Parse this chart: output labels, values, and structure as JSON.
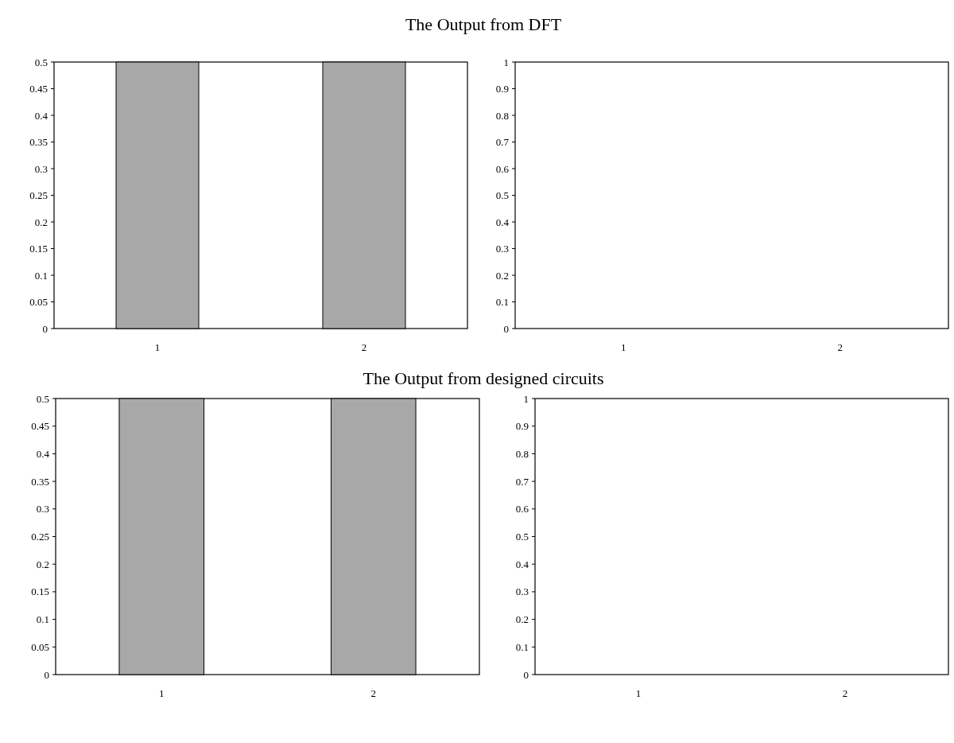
{
  "chart_data": [
    {
      "type": "bar",
      "title": "The Output from DFT",
      "categories": [
        "1",
        "2"
      ],
      "values": [
        0.5,
        0.5
      ],
      "color": "#a8a8a8",
      "ylim": [
        0,
        0.5
      ],
      "yticks": [
        0,
        0.05,
        0.1,
        0.15,
        0.2,
        0.25,
        0.3,
        0.35,
        0.4,
        0.45,
        0.5
      ],
      "grid": false
    },
    {
      "type": "bar",
      "categories": [
        "1",
        "2"
      ],
      "values": [
        0,
        0
      ],
      "color": "#a8a8a8",
      "ylim": [
        0,
        1
      ],
      "yticks": [
        0,
        0.1,
        0.2,
        0.3,
        0.4,
        0.5,
        0.6,
        0.7,
        0.8,
        0.9,
        1
      ],
      "grid": false
    },
    {
      "type": "bar",
      "title": "The Output from designed circuits",
      "categories": [
        "1",
        "2"
      ],
      "values": [
        0.5,
        0.5
      ],
      "color": "#a8a8a8",
      "ylim": [
        0,
        0.5
      ],
      "yticks": [
        0,
        0.05,
        0.1,
        0.15,
        0.2,
        0.25,
        0.3,
        0.35,
        0.4,
        0.45,
        0.5
      ],
      "grid": false
    },
    {
      "type": "bar",
      "categories": [
        "1",
        "2"
      ],
      "values": [
        0,
        0
      ],
      "color": "#a8a8a8",
      "ylim": [
        0,
        1
      ],
      "yticks": [
        0,
        0.1,
        0.2,
        0.3,
        0.4,
        0.5,
        0.6,
        0.7,
        0.8,
        0.9,
        1
      ],
      "grid": false
    }
  ]
}
